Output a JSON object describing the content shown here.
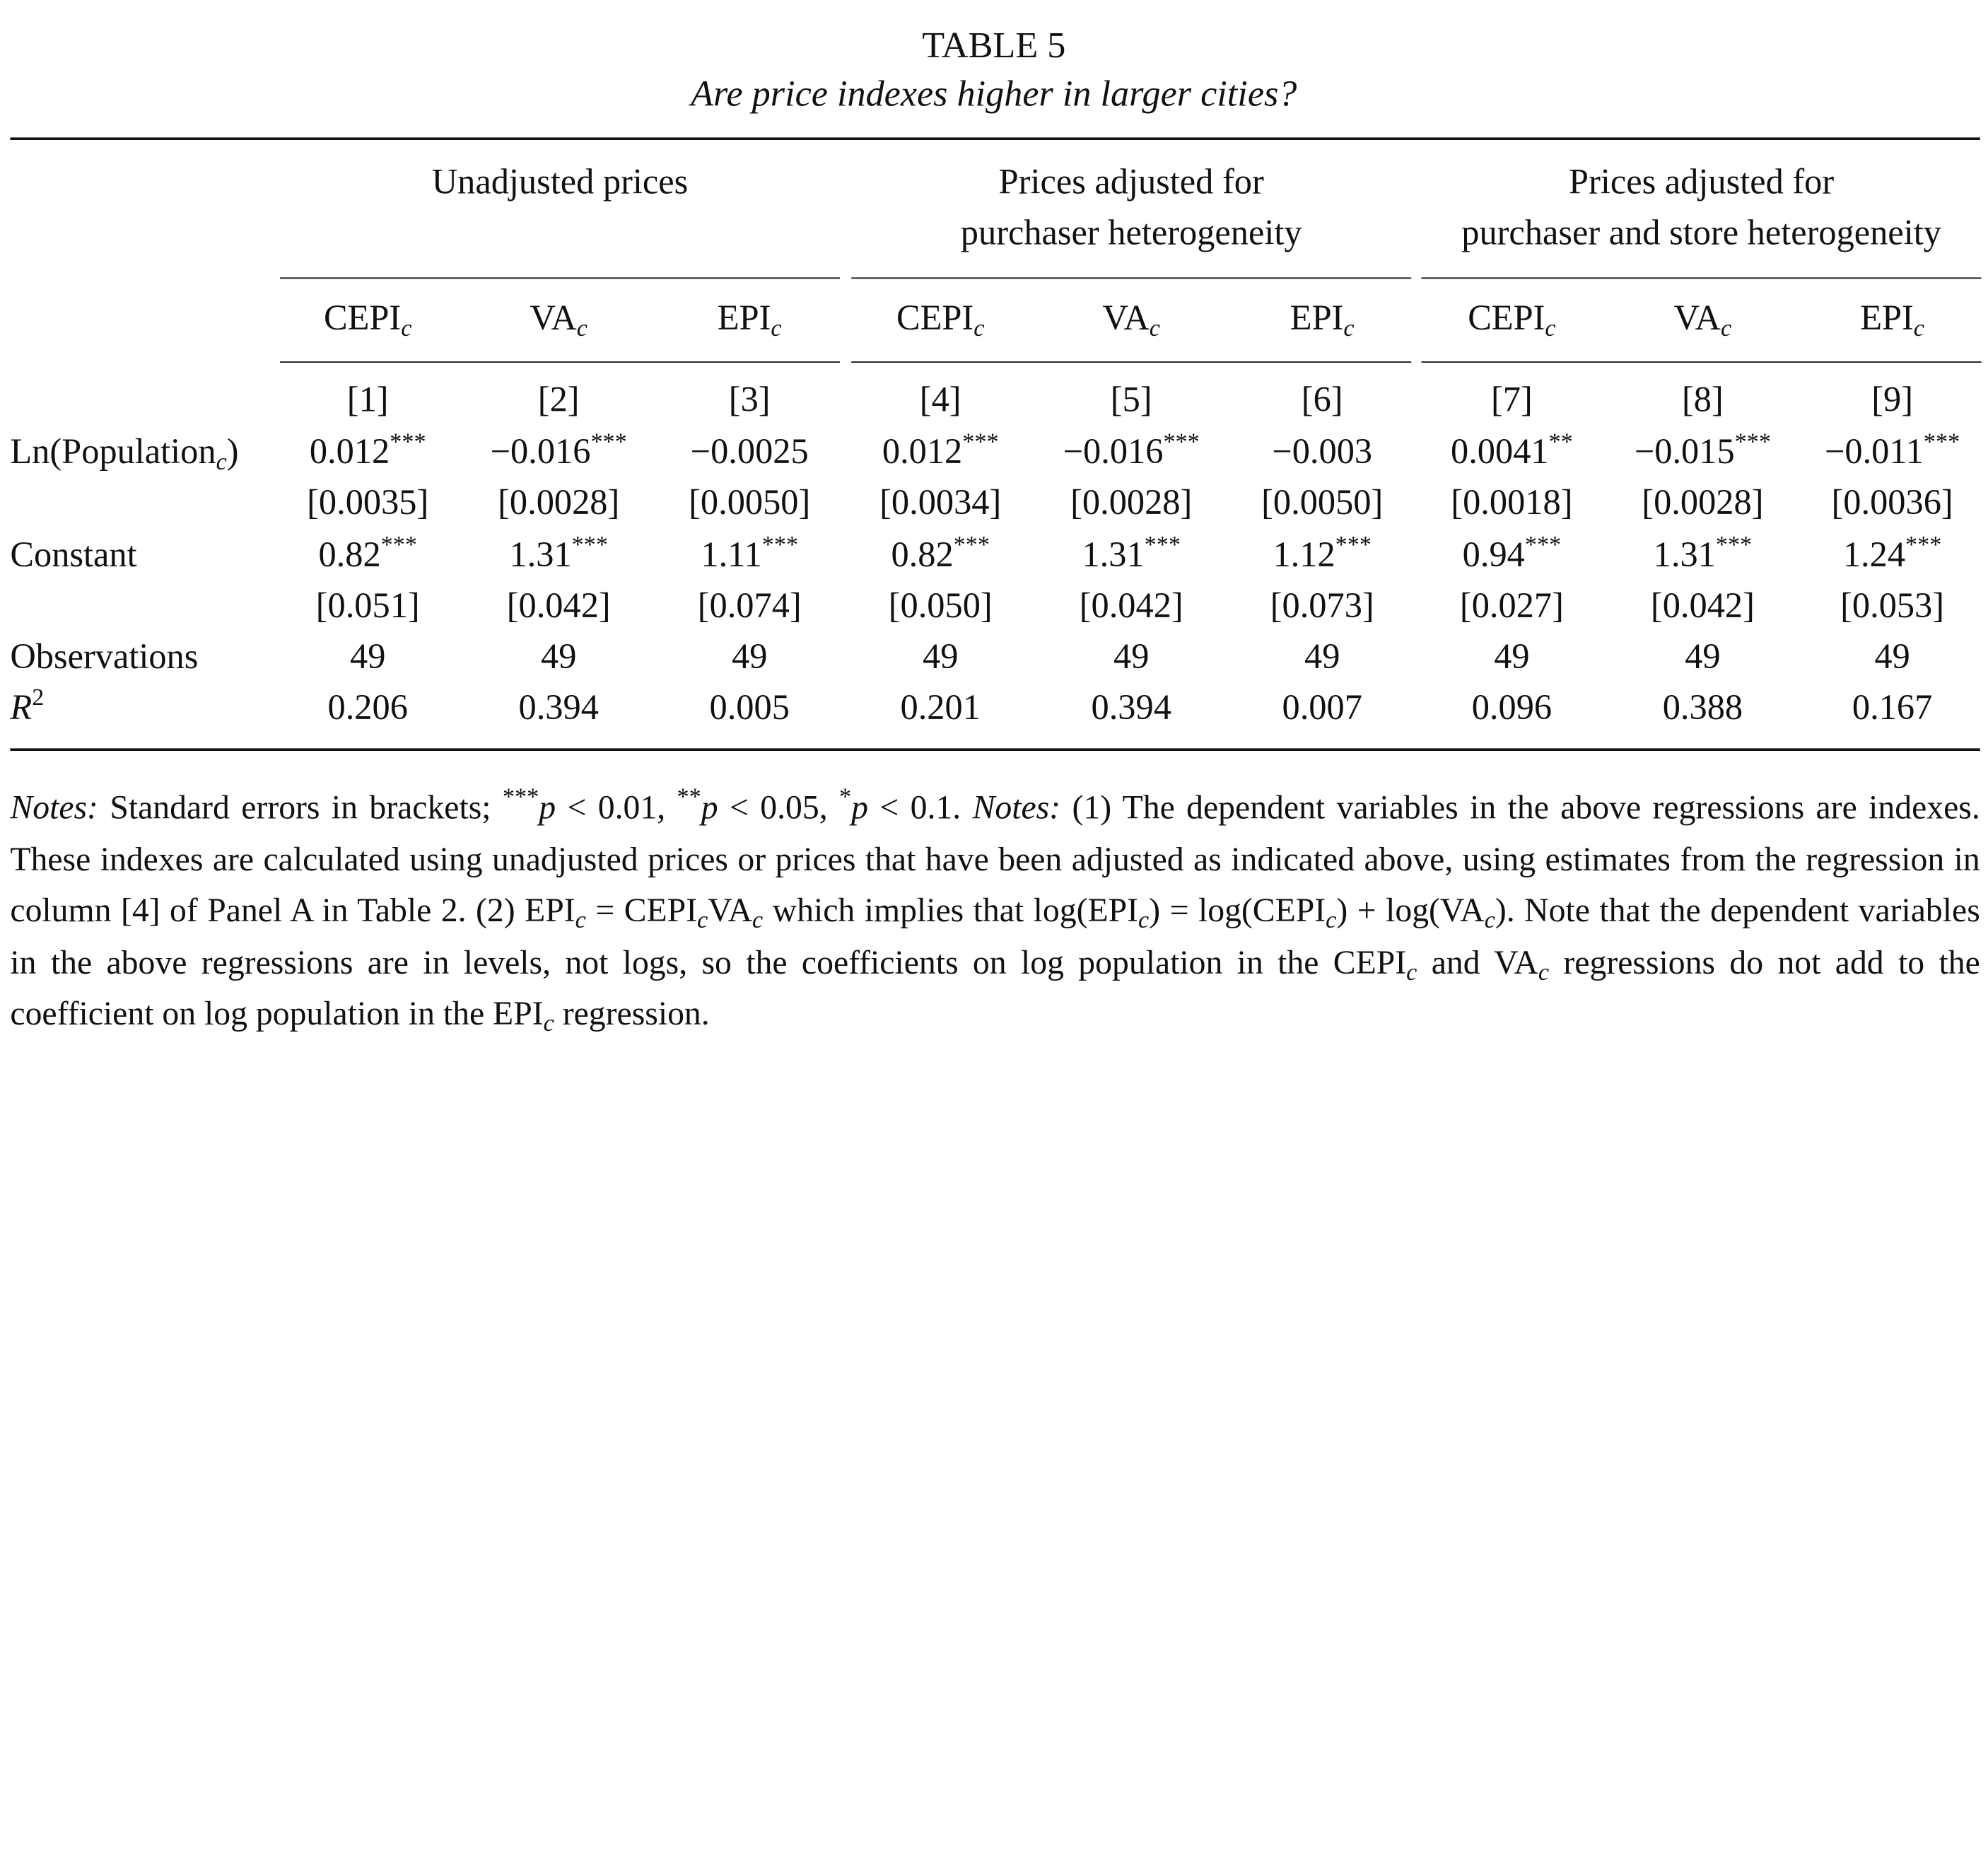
{
  "table": {
    "number": "TABLE 5",
    "caption": "Are price indexes higher in larger cities?",
    "groups": [
      {
        "line1": "Unadjusted prices",
        "line2": ""
      },
      {
        "line1": "Prices adjusted for",
        "line2": "purchaser heterogeneity"
      },
      {
        "line1": "Prices adjusted for",
        "line2": "purchaser and store heterogeneity"
      }
    ],
    "dep_vars": [
      {
        "base": "CEPI",
        "sub": "c"
      },
      {
        "base": "VA",
        "sub": "c"
      },
      {
        "base": "EPI",
        "sub": "c"
      },
      {
        "base": "CEPI",
        "sub": "c"
      },
      {
        "base": "VA",
        "sub": "c"
      },
      {
        "base": "EPI",
        "sub": "c"
      },
      {
        "base": "CEPI",
        "sub": "c"
      },
      {
        "base": "VA",
        "sub": "c"
      },
      {
        "base": "EPI",
        "sub": "c"
      }
    ],
    "col_numbers": [
      "[1]",
      "[2]",
      "[3]",
      "[4]",
      "[5]",
      "[6]",
      "[7]",
      "[8]",
      "[9]"
    ],
    "rows": {
      "ln_pop": {
        "label_pre": "Ln(Population",
        "label_sub": "c",
        "label_post": ")",
        "coef": [
          {
            "v": "0.012",
            "stars": "***"
          },
          {
            "v": "−0.016",
            "stars": "***"
          },
          {
            "v": "−0.0025",
            "stars": ""
          },
          {
            "v": "0.012",
            "stars": "***"
          },
          {
            "v": "−0.016",
            "stars": "***"
          },
          {
            "v": "−0.003",
            "stars": ""
          },
          {
            "v": "0.0041",
            "stars": "**"
          },
          {
            "v": "−0.015",
            "stars": "***"
          },
          {
            "v": "−0.011",
            "stars": "***"
          }
        ],
        "se": [
          "[0.0035]",
          "[0.0028]",
          "[0.0050]",
          "[0.0034]",
          "[0.0028]",
          "[0.0050]",
          "[0.0018]",
          "[0.0028]",
          "[0.0036]"
        ]
      },
      "constant": {
        "label": "Constant",
        "coef": [
          {
            "v": "0.82",
            "stars": "***"
          },
          {
            "v": "1.31",
            "stars": "***"
          },
          {
            "v": "1.11",
            "stars": "***"
          },
          {
            "v": "0.82",
            "stars": "***"
          },
          {
            "v": "1.31",
            "stars": "***"
          },
          {
            "v": "1.12",
            "stars": "***"
          },
          {
            "v": "0.94",
            "stars": "***"
          },
          {
            "v": "1.31",
            "stars": "***"
          },
          {
            "v": "1.24",
            "stars": "***"
          }
        ],
        "se": [
          "[0.051]",
          "[0.042]",
          "[0.074]",
          "[0.050]",
          "[0.042]",
          "[0.073]",
          "[0.027]",
          "[0.042]",
          "[0.053]"
        ]
      },
      "observations": {
        "label": "Observations",
        "values": [
          "49",
          "49",
          "49",
          "49",
          "49",
          "49",
          "49",
          "49",
          "49"
        ]
      },
      "r2": {
        "label_base": "R",
        "label_sup": "2",
        "values": [
          "0.206",
          "0.394",
          "0.005",
          "0.201",
          "0.394",
          "0.007",
          "0.096",
          "0.388",
          "0.167"
        ]
      }
    }
  },
  "notes": {
    "label1": "Notes:",
    "sig_a": " Standard errors in brackets; ",
    "sig_b": "***",
    "sig_c": "p",
    "sig_d": " < 0.01, ",
    "sig_e": "**",
    "sig_f": "p",
    "sig_g": " < 0.05, ",
    "sig_h": "*",
    "sig_i": "p",
    "sig_j": " < 0.1. ",
    "label2": "Notes:",
    "t1": " (1) The dependent variables in the above regressions are indexes. These indexes are calculated using unadjusted prices or prices that have been adjusted as indicated above, using estimates from the regression in column [4] of Panel A in Table 2. (2) EPI",
    "s1": "c",
    "t2": " = CEPI",
    "s2": "c",
    "t3": "VA",
    "s3": "c",
    "t4": " which implies that log(EPI",
    "s4": "c",
    "t5": ") = log(CEPI",
    "s5": "c",
    "t6": ") + log(VA",
    "s6": "c",
    "t7": "). Note that the dependent variables in the above regressions are in levels, not logs, so the coefficients on log population in the CEPI",
    "s7": "c",
    "t8": " and VA",
    "s8": "c",
    "t9": " regressions do not add to the coefficient on log population in the EPI",
    "s9": "c",
    "t10": " regression."
  }
}
